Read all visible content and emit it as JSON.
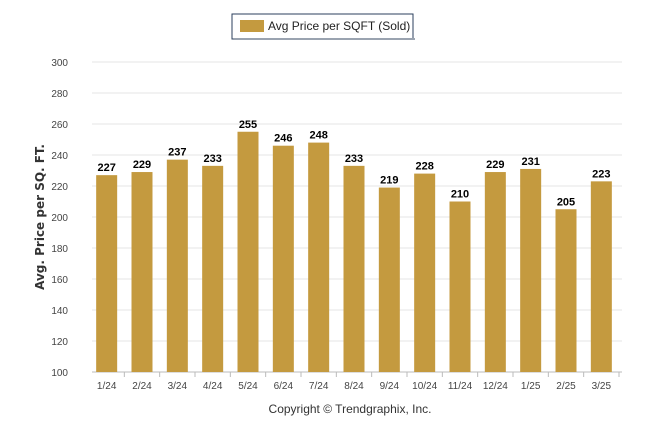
{
  "legend": {
    "label": "Avg Price per SQFT (Sold)"
  },
  "footer": {
    "copyright": "Copyright © Trendgraphix, Inc."
  },
  "colors": {
    "bar": "#C49A3F",
    "grid": "#E6E6E6",
    "axis": "#BBBBBB",
    "legend_border": "#2B3F5C"
  },
  "chart_data": {
    "type": "bar",
    "title": "",
    "xlabel": "",
    "ylabel": "Avg. Price per SQ. FT.",
    "categories": [
      "1/24",
      "2/24",
      "3/24",
      "4/24",
      "5/24",
      "6/24",
      "7/24",
      "8/24",
      "9/24",
      "10/24",
      "11/24",
      "12/24",
      "1/25",
      "2/25",
      "3/25"
    ],
    "series": [
      {
        "name": "Avg Price per SQFT (Sold)",
        "values": [
          227,
          229,
          237,
          233,
          255,
          246,
          248,
          233,
          219,
          228,
          210,
          229,
          231,
          205,
          223
        ]
      }
    ],
    "ylim": [
      100,
      300
    ],
    "yticks": [
      100,
      120,
      140,
      160,
      180,
      200,
      220,
      240,
      260,
      280,
      300
    ],
    "data_labels": true,
    "grid": true,
    "legend_position": "top-center"
  }
}
